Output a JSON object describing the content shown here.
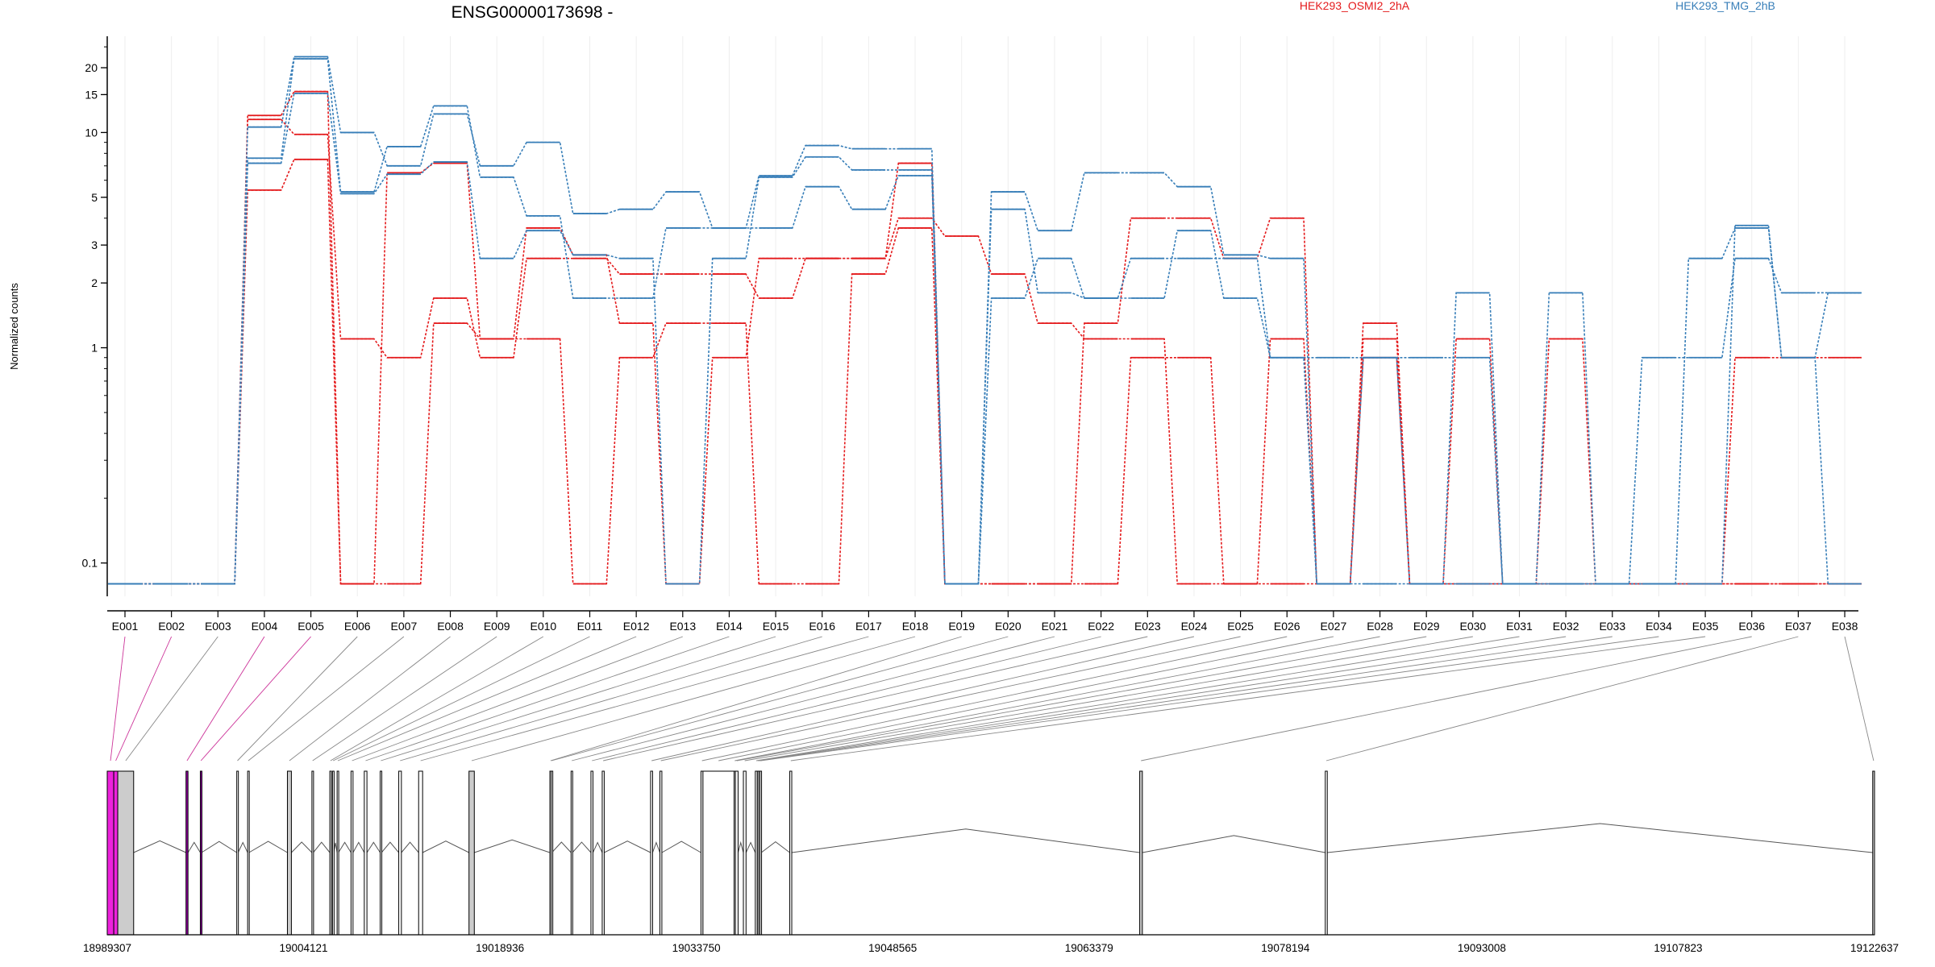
{
  "title": "ENSG00000173698 -",
  "ylabel": "Normalized counts",
  "legend": [
    {
      "name": "HEK293_OSMI2_2hA",
      "color": "#e41a1c"
    },
    {
      "name": "HEK293_TMG_2hB",
      "color": "#377eb8"
    }
  ],
  "chart_data": {
    "type": "line",
    "title": "ENSG00000173698 -",
    "ylabel": "Normalized counts",
    "yscale": "log",
    "ylim": [
      0.07,
      28
    ],
    "yticks": [
      0.1,
      1,
      2,
      3,
      5,
      10,
      15,
      20
    ],
    "grid": true,
    "legend_position": "top",
    "categories": [
      "E001",
      "E002",
      "E003",
      "E004",
      "E005",
      "E006",
      "E007",
      "E008",
      "E009",
      "E010",
      "E011",
      "E012",
      "E013",
      "E014",
      "E015",
      "E016",
      "E017",
      "E018",
      "E019",
      "E020",
      "E021",
      "E022",
      "E023",
      "E024",
      "E025",
      "E026",
      "E027",
      "E028",
      "E029",
      "E030",
      "E031",
      "E032",
      "E033",
      "E034",
      "E035",
      "E036",
      "E037",
      "E038"
    ],
    "series": [
      {
        "group": "HEK293_OSMI2_2hA",
        "color": "#e41a1c",
        "values": [
          0.08,
          0.08,
          0.08,
          12,
          15.5,
          0.08,
          0.08,
          1.3,
          1.1,
          1.1,
          0.08,
          0.9,
          1.3,
          1.3,
          0.08,
          0.08,
          2.2,
          3.6,
          0.08,
          0.08,
          0.08,
          0.08,
          0.9,
          0.9,
          0.08,
          0.08,
          0.08,
          0.9,
          0.08,
          0.08,
          0.08,
          0.08,
          0.08,
          0.08,
          0.08,
          0.08,
          0.08,
          0.08
        ]
      },
      {
        "group": "HEK293_OSMI2_2hA",
        "color": "#e41a1c",
        "values": [
          0.08,
          0.08,
          0.08,
          11.5,
          9.8,
          1.1,
          0.9,
          1.7,
          0.9,
          2.6,
          2.6,
          2.2,
          2.2,
          2.2,
          1.7,
          2.6,
          2.6,
          4,
          3.3,
          2.2,
          1.3,
          1.1,
          1.1,
          0.08,
          0.08,
          1.1,
          0.08,
          1.1,
          0.08,
          1.1,
          0.08,
          1.1,
          0.08,
          0.08,
          0.08,
          0.9,
          0.9,
          0.9
        ]
      },
      {
        "group": "HEK293_OSMI2_2hA",
        "color": "#e41a1c",
        "values": [
          0.08,
          0.08,
          0.08,
          5.4,
          7.5,
          0.08,
          6.5,
          7.2,
          1.1,
          3.6,
          2.7,
          1.3,
          0.08,
          0.9,
          2.6,
          2.6,
          2.6,
          7.2,
          0.08,
          0.08,
          0.08,
          1.3,
          4,
          4,
          2.6,
          4,
          0.08,
          1.3,
          0.08,
          0.08,
          0.08,
          0.08,
          0.08,
          0.08,
          0.08,
          0.08,
          0.08,
          0.08
        ]
      },
      {
        "group": "HEK293_TMG_2hB",
        "color": "#377eb8",
        "values": [
          0.08,
          0.08,
          0.08,
          10.6,
          22.5,
          10,
          7,
          12.2,
          7,
          9,
          4.2,
          4.4,
          5.3,
          3.6,
          6.3,
          8.7,
          8.4,
          8.4,
          0.08,
          5.3,
          3.5,
          6.5,
          6.5,
          5.6,
          2.7,
          2.6,
          0.08,
          0.08,
          0.08,
          1.8,
          0.08,
          1.8,
          0.08,
          0.08,
          0.08,
          3.7,
          0.9,
          1.8
        ]
      },
      {
        "group": "HEK293_TMG_2hB",
        "color": "#377eb8",
        "values": [
          0.08,
          0.08,
          0.08,
          7.6,
          22,
          5.3,
          8.6,
          13.3,
          6.2,
          4.1,
          1.7,
          1.7,
          3.6,
          3.6,
          3.6,
          5.6,
          4.4,
          6.3,
          0.08,
          4.4,
          1.8,
          1.7,
          1.7,
          3.5,
          1.7,
          0.9,
          0.9,
          0.9,
          0.9,
          0.9,
          0.08,
          0.08,
          0.08,
          0.9,
          0.9,
          2.6,
          1.8,
          1.8
        ]
      },
      {
        "group": "HEK293_TMG_2hB",
        "color": "#377eb8",
        "values": [
          0.08,
          0.08,
          0.08,
          7.2,
          15.2,
          5.2,
          6.4,
          7.3,
          2.6,
          3.5,
          2.7,
          2.6,
          0.08,
          2.6,
          6.2,
          7.7,
          6.7,
          6.7,
          0.08,
          1.7,
          2.6,
          1.7,
          2.6,
          2.6,
          2.6,
          0.9,
          0.08,
          0.9,
          0.08,
          0.08,
          0.08,
          0.08,
          0.08,
          0.08,
          2.6,
          3.6,
          0.9,
          0.08
        ]
      }
    ],
    "genome_axis": {
      "start": 18989307,
      "end": 19122637,
      "tick_labels": [
        "18989307",
        "19004121",
        "19018936",
        "19033750",
        "19048565",
        "19063379",
        "19078194",
        "19093008",
        "19107823",
        "19122637"
      ]
    },
    "exons": [
      {
        "id": "E001",
        "start": 18989307,
        "end": 18989800,
        "color": "#ee22dd"
      },
      {
        "id": "E002",
        "start": 18989800,
        "end": 18990100,
        "color": "#ee22dd"
      },
      {
        "id": "E003",
        "start": 18990100,
        "end": 18991300,
        "color": "#cccccc"
      },
      {
        "id": "E004",
        "start": 18995250,
        "end": 18995400,
        "color": "#9900aa"
      },
      {
        "id": "E005",
        "start": 18996330,
        "end": 18996420,
        "color": "#9900aa"
      },
      {
        "id": "E006",
        "start": 18999080,
        "end": 18999180,
        "color": "#ffffff"
      },
      {
        "id": "E007",
        "start": 18999900,
        "end": 19000000,
        "color": "#ffffff"
      },
      {
        "id": "E008",
        "start": 19002900,
        "end": 19003200,
        "color": "#cccccc"
      },
      {
        "id": "E009",
        "start": 19004750,
        "end": 19004850,
        "color": "#ffffff"
      },
      {
        "id": "E010",
        "start": 19006100,
        "end": 19006200,
        "color": "#ffffff"
      },
      {
        "id": "E011",
        "start": 19006300,
        "end": 19006400,
        "color": "#ffffff"
      },
      {
        "id": "E012",
        "start": 19006650,
        "end": 19006750,
        "color": "#ffffff"
      },
      {
        "id": "E013",
        "start": 19007700,
        "end": 19007850,
        "color": "#ffffff"
      },
      {
        "id": "E014",
        "start": 19008700,
        "end": 19008900,
        "color": "#ffffff"
      },
      {
        "id": "E015",
        "start": 19009900,
        "end": 19010000,
        "color": "#ffffff"
      },
      {
        "id": "E016",
        "start": 19011300,
        "end": 19011500,
        "color": "#ffffff"
      },
      {
        "id": "E017",
        "start": 19012800,
        "end": 19013100,
        "color": "#ffffff"
      },
      {
        "id": "E018",
        "start": 19016600,
        "end": 19017000,
        "color": "#cccccc"
      },
      {
        "id": "E019",
        "start": 19022700,
        "end": 19022800,
        "color": "#ffffff"
      },
      {
        "id": "E020",
        "start": 19022800,
        "end": 19022850,
        "color": "#ffffff"
      },
      {
        "id": "E021",
        "start": 19024300,
        "end": 19024400,
        "color": "#ffffff"
      },
      {
        "id": "E022",
        "start": 19025800,
        "end": 19025950,
        "color": "#ffffff"
      },
      {
        "id": "E023",
        "start": 19026650,
        "end": 19026800,
        "color": "#ffffff"
      },
      {
        "id": "E024",
        "start": 19030300,
        "end": 19030450,
        "color": "#ffffff"
      },
      {
        "id": "E025",
        "start": 19031000,
        "end": 19031150,
        "color": "#ffffff"
      },
      {
        "id": "E026",
        "start": 19034100,
        "end": 19034250,
        "color": "#ffffff"
      },
      {
        "id": "E027",
        "start": 19034250,
        "end": 19036600,
        "color": "#ffffff"
      },
      {
        "id": "E028",
        "start": 19036600,
        "end": 19036700,
        "color": "#ffffff"
      },
      {
        "id": "E029",
        "start": 19036700,
        "end": 19036900,
        "color": "#ffffff"
      },
      {
        "id": "E030",
        "start": 19037300,
        "end": 19037500,
        "color": "#ffffff"
      },
      {
        "id": "E031",
        "start": 19038200,
        "end": 19038350,
        "color": "#ffffff"
      },
      {
        "id": "E032",
        "start": 19038350,
        "end": 19038450,
        "color": "#ffffff"
      },
      {
        "id": "E033",
        "start": 19038450,
        "end": 19038550,
        "color": "#ffffff"
      },
      {
        "id": "E034",
        "start": 19038550,
        "end": 19038650,
        "color": "#ffffff"
      },
      {
        "id": "E035",
        "start": 19040800,
        "end": 19040950,
        "color": "#ffffff"
      },
      {
        "id": "E036",
        "start": 19067200,
        "end": 19067400,
        "color": "#cccccc"
      },
      {
        "id": "E037",
        "start": 19081200,
        "end": 19081350,
        "color": "#ffffff"
      },
      {
        "id": "E038",
        "start": 19122500,
        "end": 19122637,
        "color": "#cccccc"
      }
    ]
  }
}
